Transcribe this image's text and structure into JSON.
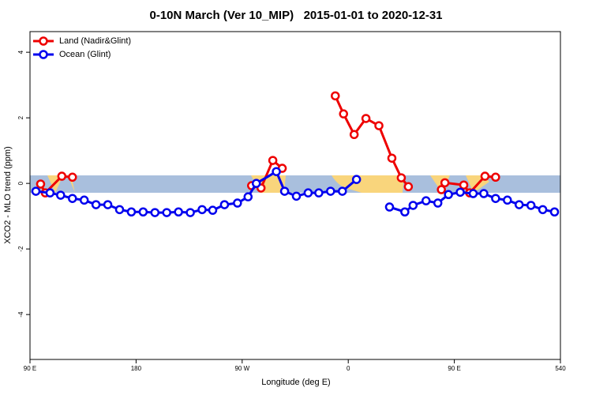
{
  "chart_data": {
    "type": "line",
    "title": "0-10N March (Ver 10_MIP)   2015-01-01 to 2020-12-31",
    "xlabel": "Longitude (deg E)",
    "ylabel": "XCO2 - MLO trend (ppm)",
    "xlim": [
      90,
      540
    ],
    "xticks": [
      {
        "value": 90,
        "label": "90 E"
      },
      180,
      {
        "value": 270,
        "label": "90 W"
      },
      {
        "value": 360,
        "label": "0"
      },
      {
        "value": 450,
        "label": "90 E"
      },
      540
    ],
    "ylim": [
      -5.37,
      4.63
    ],
    "yticks": [
      -4,
      -2,
      0,
      2,
      4
    ],
    "legend": "upper left",
    "series": [
      {
        "name": "Land (Nadir&Glint)",
        "color": "#ee0000",
        "x": [
          99,
          103,
          117,
          126,
          null,
          278,
          286,
          296,
          304,
          null,
          349,
          356,
          365,
          375,
          386,
          397,
          405,
          411,
          null,
          439,
          442,
          458,
          463,
          476,
          485
        ],
        "values": [
          -0.02,
          -0.29,
          0.22,
          0.19,
          null,
          -0.07,
          -0.14,
          0.7,
          0.46,
          null,
          2.67,
          2.12,
          1.49,
          1.98,
          1.76,
          0.77,
          0.17,
          -0.1,
          null,
          -0.19,
          0.02,
          -0.05,
          -0.29,
          0.22,
          0.19
        ]
      },
      {
        "name": "Ocean (Glint)",
        "color": "#0000ee",
        "x": [
          95,
          107,
          116,
          126,
          136,
          146,
          156,
          166,
          176,
          186,
          196,
          206,
          216,
          226,
          236,
          245,
          255,
          266,
          275,
          282,
          299,
          306,
          316,
          326,
          335,
          345,
          355,
          367,
          null,
          395,
          408,
          415,
          426,
          436,
          445,
          455,
          466,
          475,
          485,
          495,
          505,
          515,
          525,
          535
        ],
        "values": [
          -0.24,
          -0.29,
          -0.36,
          -0.46,
          -0.51,
          -0.65,
          -0.65,
          -0.8,
          -0.87,
          -0.87,
          -0.89,
          -0.89,
          -0.87,
          -0.89,
          -0.8,
          -0.82,
          -0.65,
          -0.6,
          -0.41,
          0.0,
          0.36,
          -0.24,
          -0.39,
          -0.29,
          -0.29,
          -0.24,
          -0.24,
          0.12,
          null,
          -0.72,
          -0.87,
          -0.67,
          -0.53,
          -0.6,
          -0.34,
          -0.27,
          -0.31,
          -0.31,
          -0.46,
          -0.51,
          -0.65,
          -0.67,
          -0.8,
          -0.87
        ]
      }
    ]
  }
}
